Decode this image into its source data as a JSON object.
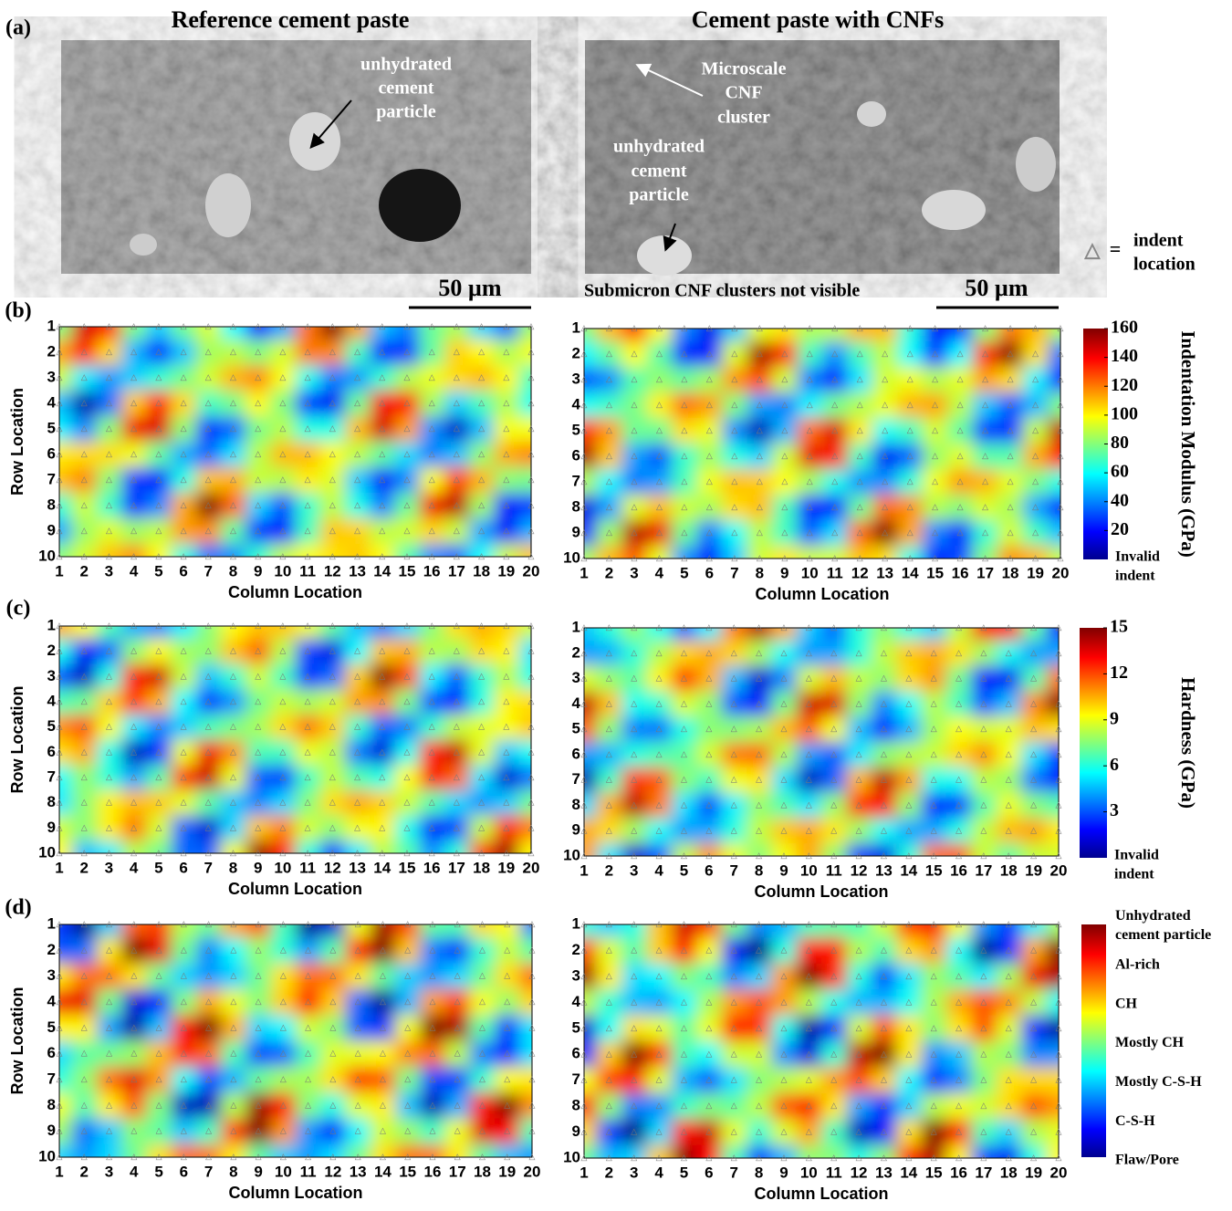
{
  "panel_labels": [
    "(a)",
    "(b)",
    "(c)",
    "(d)"
  ],
  "columns": [
    "Reference cement paste",
    "Cement paste with CNFs"
  ],
  "micrographs": [
    {
      "annotations": [
        [
          "unhydrated",
          "cement",
          "particle"
        ]
      ]
    },
    {
      "annotations": [
        [
          "Microscale",
          "CNF",
          "cluster"
        ],
        [
          "unhydrated",
          "cement",
          "particle"
        ]
      ],
      "note": "Submicron CNF clusters not visible"
    }
  ],
  "scale_bar": "50 µm",
  "legend": {
    "symbol": "△",
    "equals": "=",
    "text": [
      "indent",
      "location"
    ]
  },
  "maps": {
    "row_label": "Row Location",
    "column_label": "Column Location",
    "rows": [
      1,
      2,
      3,
      4,
      5,
      6,
      7,
      8,
      9,
      10
    ],
    "columns": [
      1,
      2,
      3,
      4,
      5,
      6,
      7,
      8,
      9,
      10,
      11,
      12,
      13,
      14,
      15,
      16,
      17,
      18,
      19,
      20
    ]
  },
  "colorbars": [
    {
      "title": "Indentation Modulus (GPa)",
      "lim": [
        0,
        160
      ],
      "ticks": [
        20,
        40,
        60,
        80,
        100,
        120,
        140,
        160
      ],
      "bottom_label": [
        "Invalid",
        "indent"
      ]
    },
    {
      "title": "Hardness (GPa)",
      "lim": [
        0,
        15
      ],
      "ticks": [
        3,
        6,
        9,
        12,
        15
      ],
      "bottom_label": [
        "Invalid",
        "indent"
      ]
    },
    {
      "labels": [
        [
          "Unhydrated",
          "cement particle"
        ],
        [
          "Al-rich"
        ],
        [
          "CH"
        ],
        [
          "Mostly CH"
        ],
        [
          "Mostly C-S-H"
        ],
        [
          "C-S-H"
        ],
        [
          "Flaw/Pore"
        ]
      ]
    }
  ]
}
